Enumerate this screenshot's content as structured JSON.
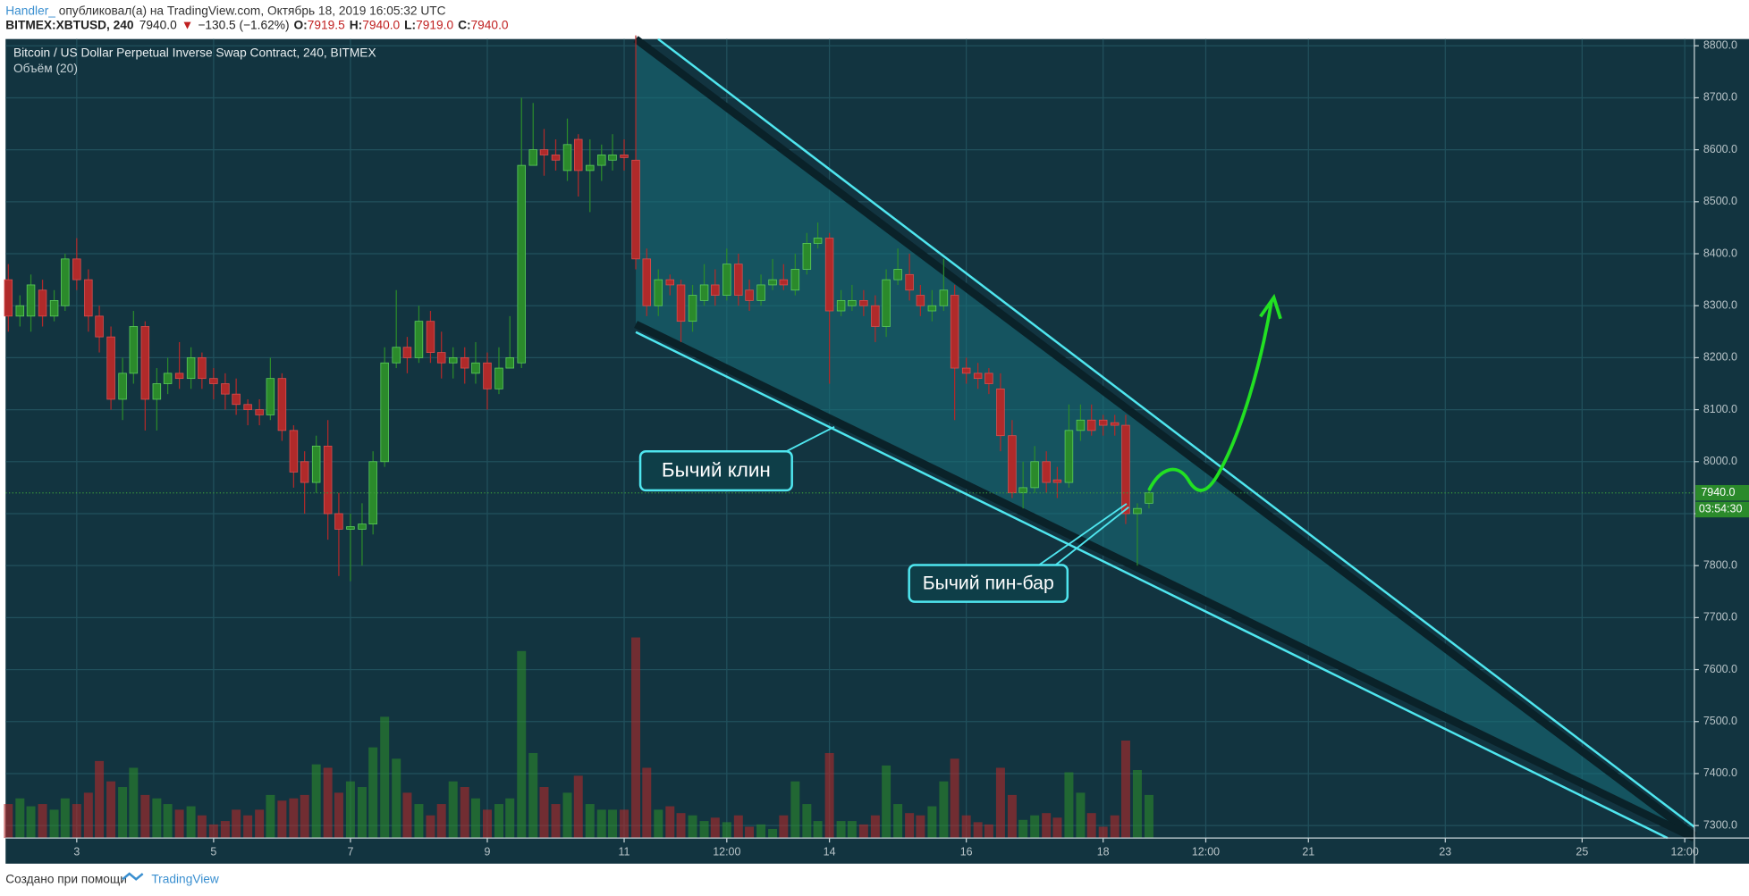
{
  "header": {
    "author": "Handler_",
    "published": " опубликовал(а) на TradingView.com, Октябрь 18, 2019 16:05:32 UTC",
    "symbol": "BITMEX:XBTUSD, 240",
    "price": "7940.0",
    "arrow": "▼",
    "change": "−130.5 (−1.62%)",
    "o_label": "O:",
    "o": "7919.5",
    "h_label": "H:",
    "h": "7940.0",
    "l_label": "L:",
    "l": "7919.0",
    "c_label": "C:",
    "c": "7940.0"
  },
  "footer": {
    "text": "Создано при помощи",
    "brand": "TradingView"
  },
  "chart_data": {
    "type": "candlestick",
    "title": "Bitcoin / US Dollar Perpetual Inverse Swap Contract, 240, BITMEX",
    "subtitle": "Объём (20)",
    "up_color": "#2b8a2b",
    "down_color": "#b02a2a",
    "x": [
      2,
      2.17,
      2.33,
      2.5,
      2.67,
      2.83,
      3,
      3.17,
      3.33,
      3.5,
      3.67,
      3.83,
      4,
      4.17,
      4.33,
      4.5,
      4.67,
      4.83,
      5,
      5.17,
      5.33,
      5.5,
      5.67,
      5.83,
      6,
      6.17,
      6.33,
      6.5,
      6.67,
      6.83,
      7,
      7.17,
      7.33,
      7.5,
      7.67,
      7.83,
      8,
      8.17,
      8.33,
      8.5,
      8.67,
      8.83,
      9,
      9.17,
      9.33,
      9.5,
      9.67,
      9.83,
      10,
      10.17,
      10.33,
      10.5,
      10.67,
      10.83,
      11,
      11.17,
      11.33,
      11.5,
      11.67,
      11.83,
      12,
      12.17,
      12.33,
      12.5,
      12.67,
      12.83,
      13,
      13.17,
      13.33,
      13.5,
      13.67,
      13.83,
      14,
      14.17,
      14.33,
      14.5,
      14.67,
      14.83,
      15,
      15.17,
      15.33,
      15.5,
      15.67,
      15.83,
      16,
      16.17,
      16.33,
      16.5,
      16.67,
      16.83,
      17,
      17.17,
      17.33,
      17.5,
      17.67,
      17.83,
      18,
      18.17,
      18.33,
      18.5,
      18.67
    ],
    "open": [
      8350,
      8280,
      8280,
      8330,
      8280,
      8300,
      8390,
      8350,
      8280,
      8240,
      8120,
      8170,
      8260,
      8120,
      8150,
      8170,
      8160,
      8200,
      8160,
      8150,
      8130,
      8110,
      8100,
      8090,
      8160,
      8060,
      8000,
      7960,
      8030,
      7900,
      7870,
      7870,
      7880,
      8000,
      8190,
      8220,
      8200,
      8270,
      8210,
      8190,
      8200,
      8170,
      8190,
      8140,
      8180,
      8190,
      8570,
      8600,
      8590,
      8560,
      8620,
      8560,
      8570,
      8580,
      8590,
      8580,
      8390,
      8300,
      8350,
      8340,
      8270,
      8310,
      8340,
      8320,
      8380,
      8330,
      8310,
      8340,
      8350,
      8330,
      8370,
      8420,
      8430,
      8290,
      8300,
      8310,
      8300,
      8260,
      8350,
      8360,
      8320,
      8290,
      8300,
      8320,
      8180,
      8170,
      8170,
      8140,
      8050,
      7940,
      7950,
      8000,
      7965,
      7960,
      8060,
      8080,
      8080,
      8075,
      8070,
      7900,
      7920
    ],
    "high": [
      8380,
      8320,
      8360,
      8350,
      8330,
      8400,
      8430,
      8370,
      8300,
      8260,
      8200,
      8290,
      8270,
      8180,
      8200,
      8230,
      8220,
      8210,
      8180,
      8170,
      8160,
      8120,
      8120,
      8200,
      8170,
      8070,
      8020,
      8050,
      8080,
      7940,
      7900,
      7920,
      8020,
      8220,
      8330,
      8240,
      8300,
      8290,
      8250,
      8220,
      8220,
      8230,
      8210,
      8220,
      8280,
      8700,
      8690,
      8640,
      8620,
      8660,
      8630,
      8620,
      8610,
      8630,
      8620,
      8820,
      8410,
      8370,
      8360,
      8350,
      8340,
      8380,
      8370,
      8410,
      8400,
      8350,
      8360,
      8390,
      8380,
      8400,
      8440,
      8460,
      8440,
      8330,
      8340,
      8330,
      8320,
      8370,
      8410,
      8400,
      8340,
      8330,
      8390,
      8340,
      8200,
      8190,
      8180,
      8170,
      8080,
      8000,
      8030,
      8020,
      7990,
      8110,
      8110,
      8110,
      8090,
      8090,
      8090,
      7920,
      7950
    ],
    "low": [
      8250,
      8260,
      8250,
      8260,
      8270,
      8290,
      8330,
      8250,
      8210,
      8100,
      8080,
      8150,
      8060,
      8060,
      8130,
      8140,
      8140,
      8140,
      8120,
      8100,
      8090,
      8070,
      8070,
      8080,
      8040,
      7950,
      7900,
      7940,
      7850,
      7780,
      7770,
      7800,
      7860,
      7990,
      8180,
      8170,
      8190,
      8190,
      8160,
      8160,
      8150,
      8150,
      8100,
      8130,
      8180,
      8180,
      8570,
      8550,
      8560,
      8540,
      8510,
      8480,
      8540,
      8560,
      8560,
      8370,
      8280,
      8280,
      8320,
      8230,
      8250,
      8300,
      8300,
      8310,
      8300,
      8290,
      8300,
      8330,
      8330,
      8320,
      8360,
      8410,
      8150,
      8280,
      8290,
      8280,
      8230,
      8240,
      8340,
      8310,
      8280,
      8270,
      8290,
      8080,
      8150,
      8140,
      8130,
      8020,
      7930,
      7910,
      7940,
      7940,
      7930,
      7950,
      8040,
      8050,
      8050,
      8050,
      7880,
      7800,
      7910
    ],
    "close": [
      8280,
      8300,
      8340,
      8280,
      8310,
      8390,
      8350,
      8280,
      8240,
      8120,
      8170,
      8260,
      8120,
      8150,
      8170,
      8160,
      8200,
      8160,
      8150,
      8130,
      8110,
      8100,
      8090,
      8160,
      8060,
      7980,
      7960,
      8030,
      7900,
      7870,
      7875,
      7880,
      8000,
      8190,
      8220,
      8200,
      8270,
      8210,
      8190,
      8200,
      8180,
      8190,
      8140,
      8180,
      8200,
      8570,
      8600,
      8590,
      8580,
      8610,
      8560,
      8570,
      8590,
      8590,
      8585,
      8390,
      8300,
      8350,
      8340,
      8270,
      8320,
      8340,
      8320,
      8380,
      8320,
      8310,
      8340,
      8350,
      8340,
      8370,
      8420,
      8430,
      8290,
      8310,
      8310,
      8300,
      8260,
      8350,
      8370,
      8330,
      8300,
      8300,
      8330,
      8180,
      8170,
      8160,
      8150,
      8050,
      7940,
      7950,
      8000,
      7960,
      7960,
      8060,
      8080,
      8060,
      8070,
      8070,
      7900,
      7910,
      7940
    ],
    "volume": [
      30,
      35,
      28,
      30,
      25,
      35,
      30,
      40,
      68,
      50,
      45,
      62,
      38,
      35,
      30,
      25,
      28,
      20,
      12,
      15,
      25,
      20,
      25,
      38,
      33,
      35,
      38,
      65,
      62,
      40,
      50,
      45,
      80,
      107,
      70,
      40,
      30,
      20,
      30,
      50,
      45,
      35,
      25,
      30,
      35,
      165,
      75,
      45,
      30,
      40,
      55,
      30,
      25,
      25,
      25,
      177,
      62,
      25,
      28,
      22,
      20,
      15,
      18,
      14,
      20,
      10,
      12,
      8,
      20,
      50,
      30,
      15,
      75,
      15,
      15,
      12,
      20,
      64,
      30,
      22,
      20,
      28,
      50,
      70,
      20,
      14,
      12,
      62,
      38,
      16,
      20,
      22,
      18,
      58,
      40,
      22,
      10,
      20,
      86,
      60,
      38
    ],
    "xlim": [
      1.96,
      26.64
    ],
    "xticks": [
      3,
      5,
      7,
      9,
      11,
      {
        "value": 12.5,
        "label": "12:00"
      },
      14,
      16,
      18,
      {
        "value": 19.5,
        "label": "12:00"
      },
      21,
      23,
      25,
      {
        "value": 26.5,
        "label": "12:00"
      }
    ],
    "ylim": [
      7276,
      8813
    ],
    "yticks": [
      {
        "value": 7300,
        "label": "7300.0"
      },
      {
        "value": 7400,
        "label": "7400.0"
      },
      {
        "value": 7500,
        "label": "7500.0"
      },
      {
        "value": 7600,
        "label": "7600.0"
      },
      {
        "value": 7700,
        "label": "7700.0"
      },
      {
        "value": 7800,
        "label": "7800.0"
      },
      {
        "value": 7900,
        "label": "7900.0"
      },
      {
        "value": 8000,
        "label": "8000.0"
      },
      {
        "value": 8100,
        "label": "8100.0"
      },
      {
        "value": 8200,
        "label": "8200.0"
      },
      {
        "value": 8300,
        "label": "8300.0"
      },
      {
        "value": 8400,
        "label": "8400.0"
      },
      {
        "value": 8500,
        "label": "8500.0"
      },
      {
        "value": 8600,
        "label": "8600.0"
      },
      {
        "value": 8700,
        "label": "8700.0"
      },
      {
        "value": 8800,
        "label": "8800.0"
      }
    ],
    "grid": true,
    "last_price": {
      "value": 7940,
      "label": "7940.0"
    },
    "countdown": "03:54:30",
    "annotations": [
      "Бычий клин",
      "Бычий пин-бар"
    ]
  }
}
